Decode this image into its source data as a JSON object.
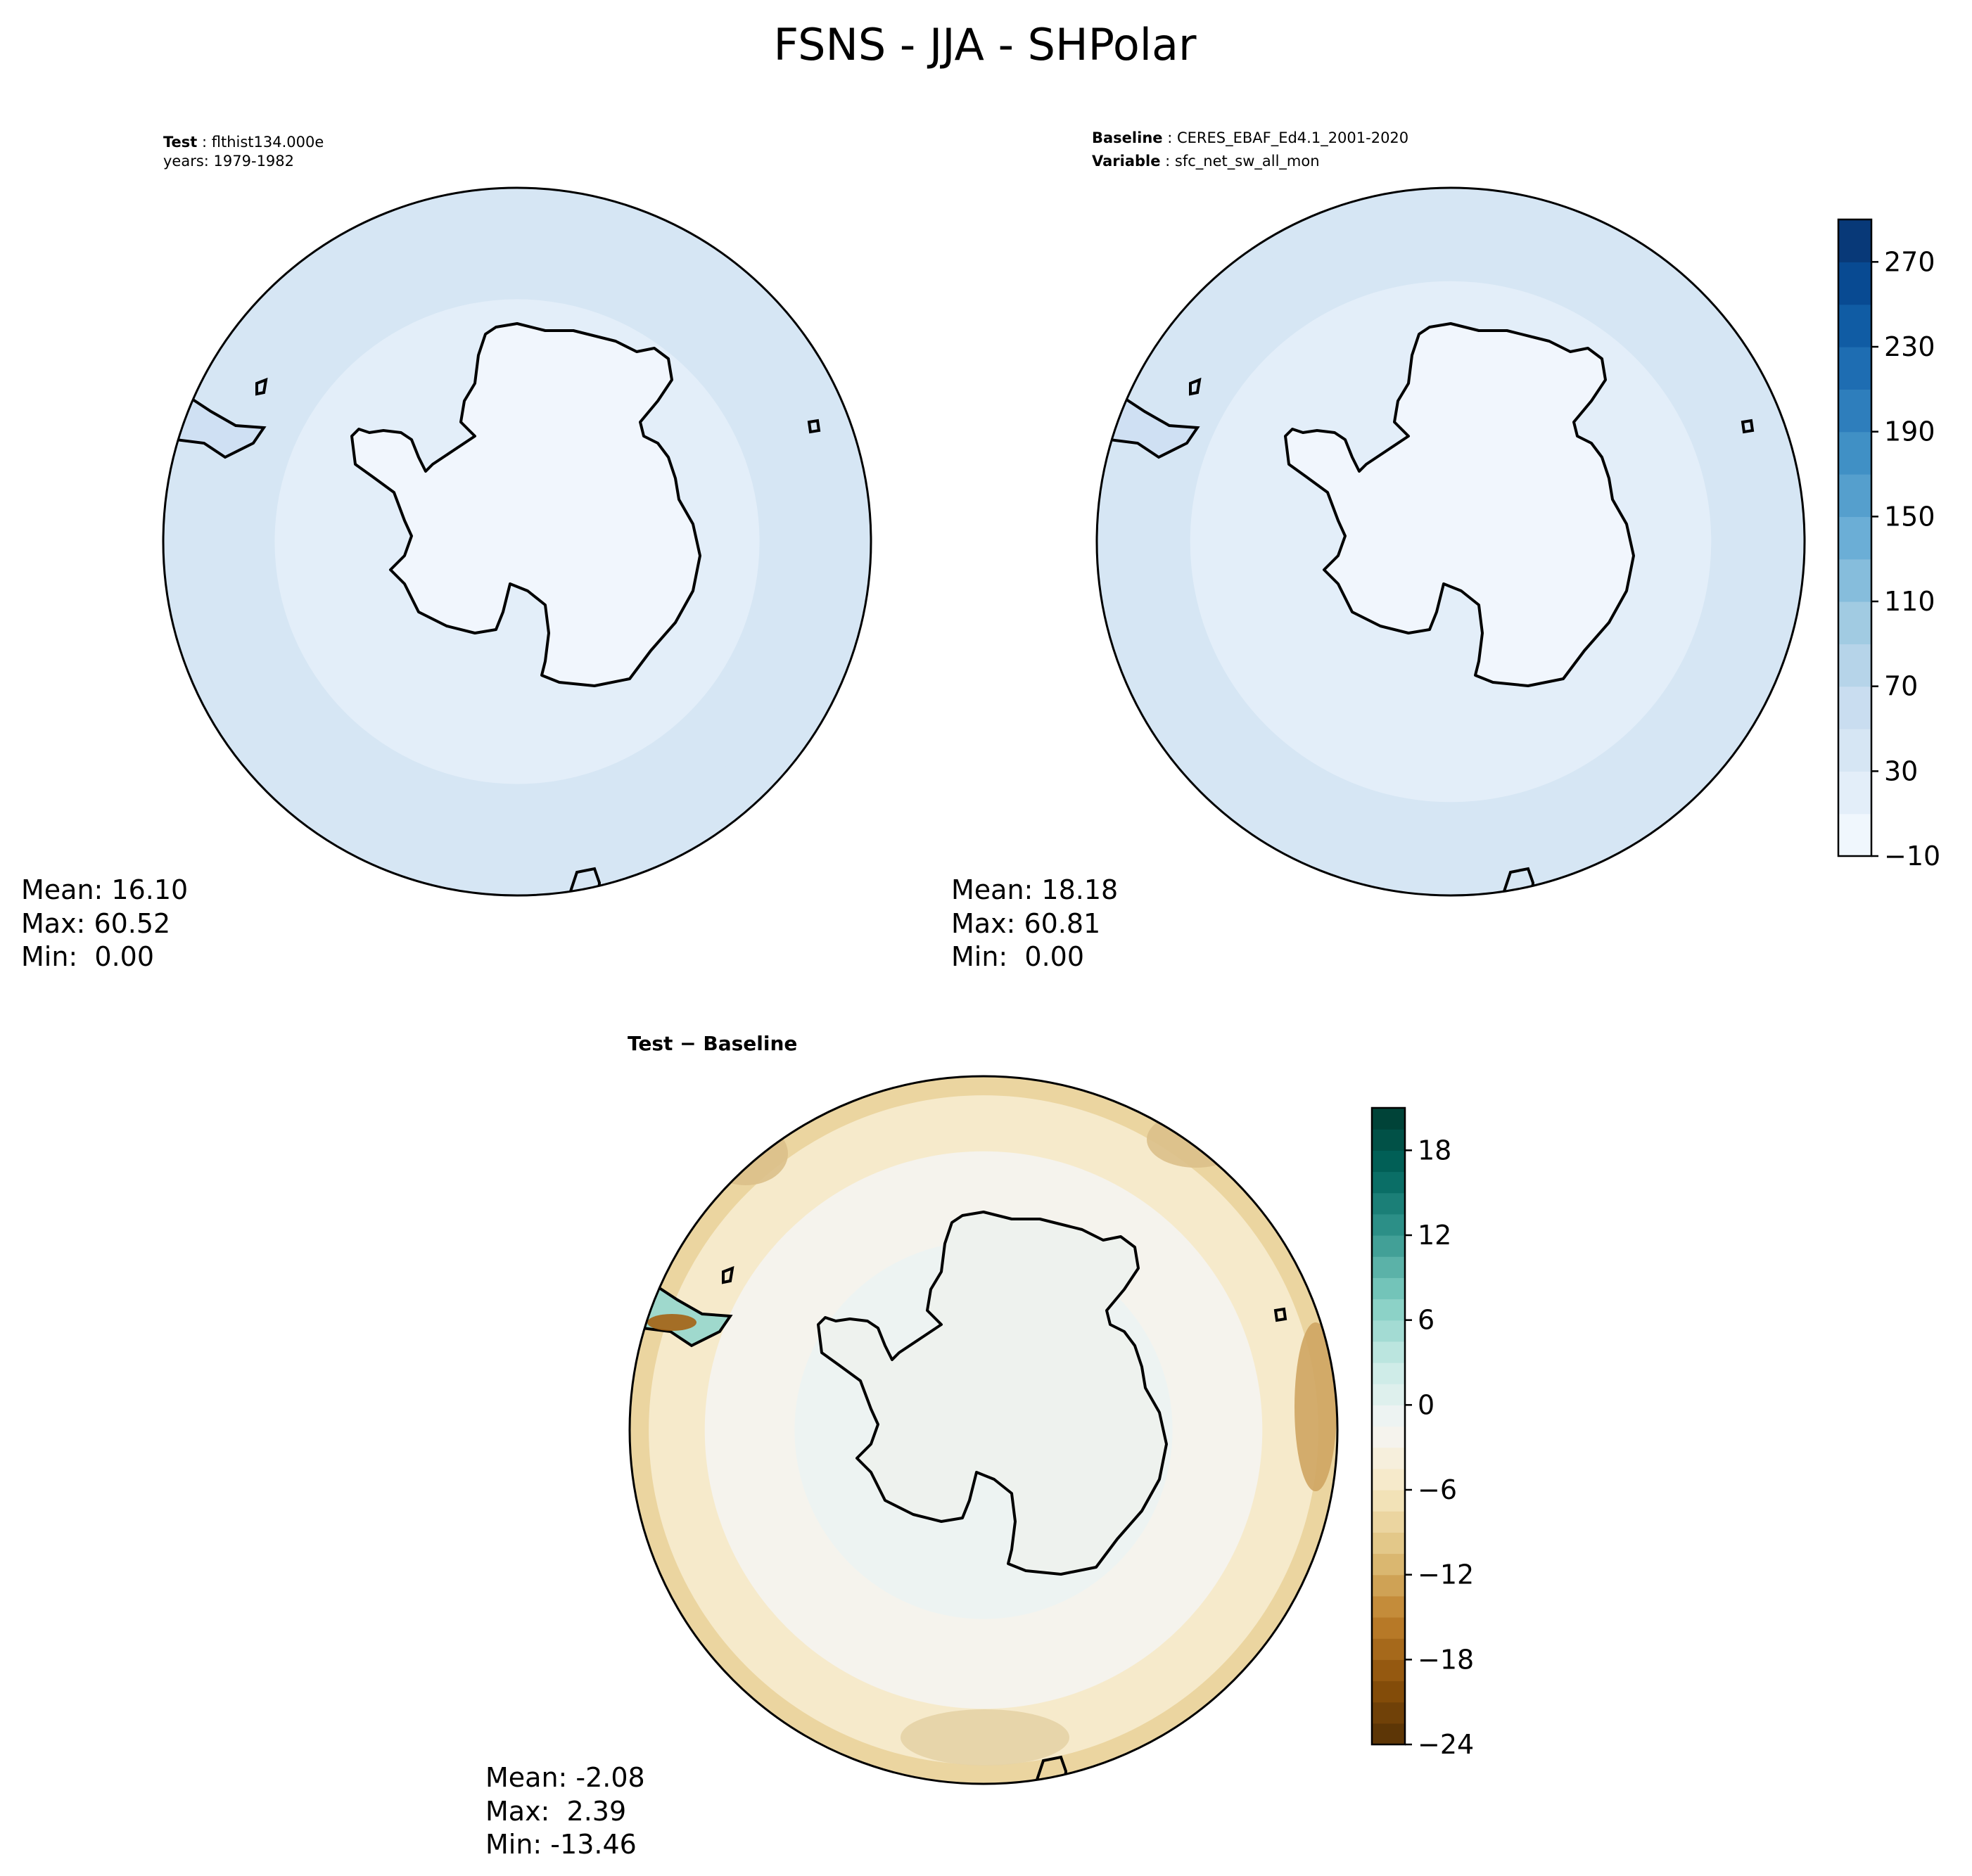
{
  "title": "FSNS - JJA - SHPolar",
  "panels": [
    {
      "id": "test",
      "header": [
        {
          "bold": "Test",
          "sep": " : ",
          "text": "flthist134.000e"
        },
        {
          "bold": "",
          "sep": "",
          "text": "years: 1979-1982"
        }
      ],
      "stats": {
        "mean": "Mean: 16.10",
        "max": "Max: 60.52",
        "min": "Min:  0.00"
      }
    },
    {
      "id": "baseline",
      "header": [
        {
          "bold": "Baseline",
          "sep": " : ",
          "text": "CERES_EBAF_Ed4.1_2001-2020"
        },
        {
          "bold": "Variable",
          "sep": " : ",
          "text": "sfc_net_sw_all_mon"
        }
      ],
      "stats": {
        "mean": "Mean: 18.18",
        "max": "Max: 60.81",
        "min": "Min:  0.00"
      }
    },
    {
      "id": "diff",
      "header": [
        {
          "bold": "Test − Baseline",
          "sep": "",
          "text": ""
        }
      ],
      "stats": {
        "mean": "Mean: -2.08",
        "max": "Max:  2.39",
        "min": "Min: -13.46"
      }
    }
  ],
  "chart_data": [
    {
      "type": "heatmap",
      "name": "test",
      "projection": "south-polar-stereographic",
      "mean": 16.1,
      "max": 60.52,
      "min": 0.0,
      "rings": [
        {
          "lat": -90,
          "value": 5
        },
        {
          "lat": -72,
          "value": 15
        },
        {
          "lat": -62,
          "value": 25
        },
        {
          "lat": -55,
          "value": 35
        },
        {
          "lat": -50,
          "value": 45
        }
      ],
      "colorbar": {
        "levels_start": -10,
        "levels_end": 290,
        "step": 20,
        "ticks": [
          -10,
          30,
          70,
          110,
          150,
          190,
          230,
          270
        ]
      }
    },
    {
      "type": "heatmap",
      "name": "baseline",
      "projection": "south-polar-stereographic",
      "mean": 18.18,
      "max": 60.81,
      "min": 0.0,
      "rings": [
        {
          "lat": -90,
          "value": 5
        },
        {
          "lat": -70,
          "value": 15
        },
        {
          "lat": -60,
          "value": 25
        },
        {
          "lat": -52,
          "value": 35
        },
        {
          "lat": -50,
          "value": 45
        }
      ],
      "colorbar": {
        "levels_start": -10,
        "levels_end": 290,
        "step": 20,
        "ticks": [
          -10,
          30,
          70,
          110,
          150,
          190,
          230,
          270
        ]
      }
    },
    {
      "type": "heatmap",
      "name": "diff",
      "projection": "south-polar-stereographic",
      "mean": -2.08,
      "max": 2.39,
      "min": -13.46,
      "rings": [
        {
          "lat": -90,
          "value": 0.5
        },
        {
          "lat": -68,
          "value": -1
        },
        {
          "lat": -58,
          "value": -3
        },
        {
          "lat": -52,
          "value": -6
        },
        {
          "lat": -50,
          "value": -9
        }
      ],
      "colorbar": {
        "levels_start": -24,
        "levels_end": 21,
        "step": 1.5,
        "ticks": [
          -24,
          -18,
          -12,
          -6,
          0,
          6,
          12,
          18
        ]
      }
    }
  ]
}
